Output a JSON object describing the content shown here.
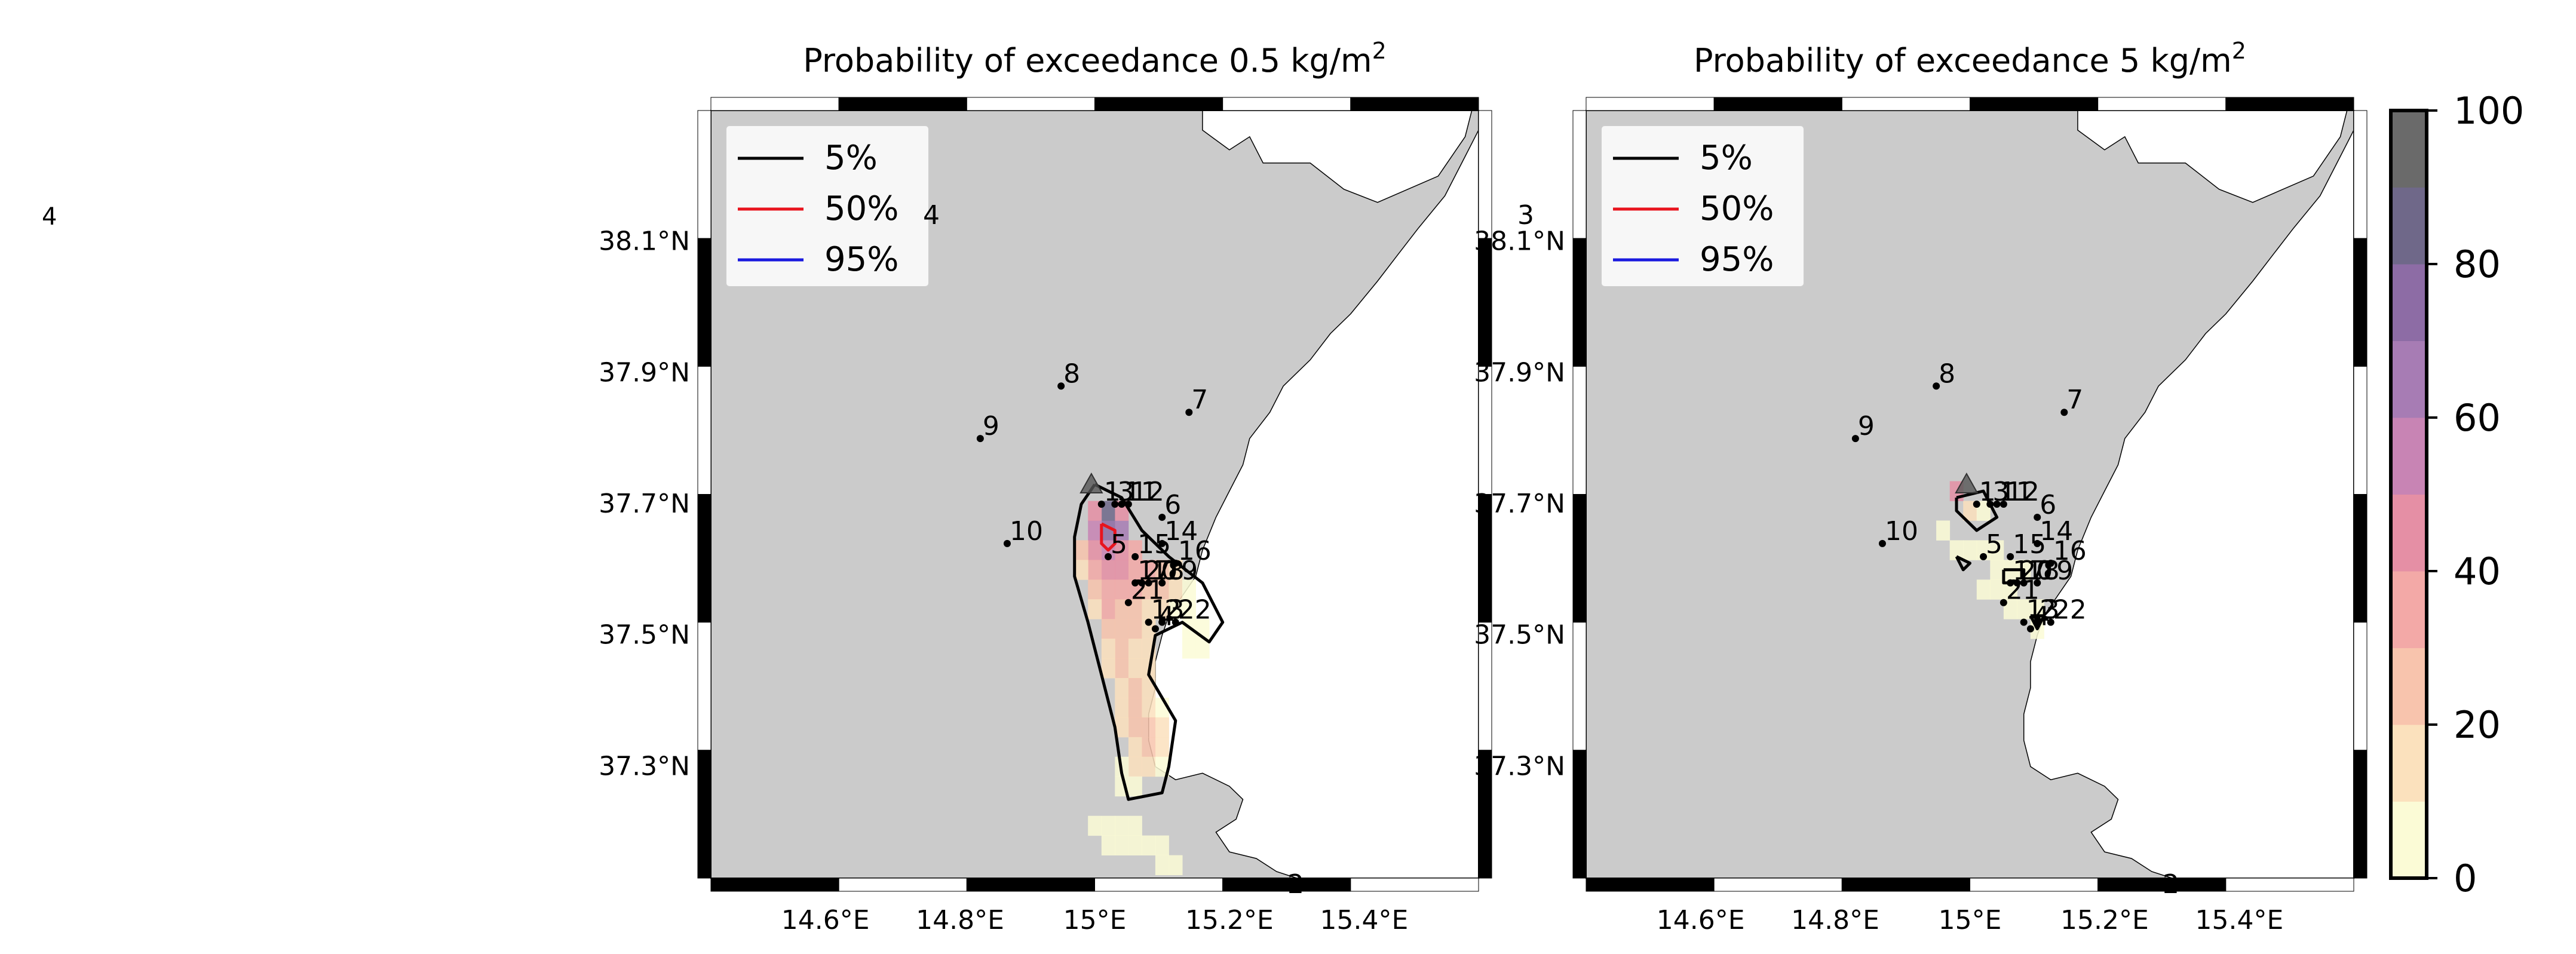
{
  "stray_labels": {
    "left": "4"
  },
  "colorbar": {
    "ticks": [
      0,
      20,
      40,
      60,
      80,
      100
    ],
    "levels": [
      0,
      10,
      20,
      30,
      40,
      50,
      60,
      70,
      80,
      90,
      100
    ],
    "colors": [
      "#fbfbd6",
      "#fbe1bd",
      "#f8c4ad",
      "#f3a9a7",
      "#e58fa5",
      "#c884b4",
      "#a77cb4",
      "#8d6ca5",
      "#6f6889",
      "#6a6a6a"
    ]
  },
  "chart_data": [
    {
      "type": "heatmap",
      "title_prefix": "Probability of exceedance 0.5 kg/m",
      "title_sup": "2",
      "threshold_kg_m2": 0.5,
      "xticks": [
        "14.6°E",
        "14.8°E",
        "15°E",
        "15.2°E",
        "15.4°E"
      ],
      "yticks": [
        "38.1°N",
        "37.9°N",
        "37.7°N",
        "37.5°N",
        "37.3°N"
      ],
      "xlim": [
        14.43,
        15.57
      ],
      "ylim": [
        37.13,
        38.3
      ],
      "legend": {
        "placement": "upper-left",
        "entries": [
          {
            "label": "5%",
            "color": "#000000"
          },
          {
            "label": "50%",
            "color": "#e8141e"
          },
          {
            "label": "95%",
            "color": "#1a1adf"
          }
        ]
      },
      "stray_labels": [
        "4",
        "2"
      ],
      "cells": [
        {
          "lon": 15.02,
          "lat": 37.69,
          "p": 85
        },
        {
          "lon": 15.02,
          "lat": 37.66,
          "p": 75
        },
        {
          "lon": 15.0,
          "lat": 37.66,
          "p": 55
        },
        {
          "lon": 15.04,
          "lat": 37.66,
          "p": 60
        },
        {
          "lon": 15.02,
          "lat": 37.63,
          "p": 55
        },
        {
          "lon": 15.0,
          "lat": 37.63,
          "p": 45
        },
        {
          "lon": 15.04,
          "lat": 37.63,
          "p": 45
        },
        {
          "lon": 14.98,
          "lat": 37.63,
          "p": 25
        },
        {
          "lon": 15.06,
          "lat": 37.63,
          "p": 35
        },
        {
          "lon": 15.0,
          "lat": 37.69,
          "p": 40
        },
        {
          "lon": 15.04,
          "lat": 37.69,
          "p": 45
        },
        {
          "lon": 15.02,
          "lat": 37.6,
          "p": 45
        },
        {
          "lon": 15.04,
          "lat": 37.6,
          "p": 40
        },
        {
          "lon": 15.06,
          "lat": 37.6,
          "p": 35
        },
        {
          "lon": 15.08,
          "lat": 37.6,
          "p": 35
        },
        {
          "lon": 15.1,
          "lat": 37.6,
          "p": 25
        },
        {
          "lon": 15.12,
          "lat": 37.6,
          "p": 15
        },
        {
          "lon": 15.0,
          "lat": 37.6,
          "p": 30
        },
        {
          "lon": 14.98,
          "lat": 37.6,
          "p": 15
        },
        {
          "lon": 15.02,
          "lat": 37.57,
          "p": 35
        },
        {
          "lon": 15.04,
          "lat": 37.57,
          "p": 35
        },
        {
          "lon": 15.06,
          "lat": 37.57,
          "p": 30
        },
        {
          "lon": 15.08,
          "lat": 37.57,
          "p": 25
        },
        {
          "lon": 15.1,
          "lat": 37.57,
          "p": 20
        },
        {
          "lon": 15.12,
          "lat": 37.57,
          "p": 15
        },
        {
          "lon": 15.14,
          "lat": 37.57,
          "p": 5
        },
        {
          "lon": 15.0,
          "lat": 37.57,
          "p": 20
        },
        {
          "lon": 15.02,
          "lat": 37.54,
          "p": 30
        },
        {
          "lon": 15.04,
          "lat": 37.54,
          "p": 25
        },
        {
          "lon": 15.06,
          "lat": 37.54,
          "p": 25
        },
        {
          "lon": 15.08,
          "lat": 37.54,
          "p": 15
        },
        {
          "lon": 15.1,
          "lat": 37.54,
          "p": 10
        },
        {
          "lon": 15.12,
          "lat": 37.54,
          "p": 5
        },
        {
          "lon": 15.14,
          "lat": 37.54,
          "p": 5
        },
        {
          "lon": 15.0,
          "lat": 37.54,
          "p": 15
        },
        {
          "lon": 15.02,
          "lat": 37.51,
          "p": 25
        },
        {
          "lon": 15.04,
          "lat": 37.51,
          "p": 20
        },
        {
          "lon": 15.06,
          "lat": 37.51,
          "p": 20
        },
        {
          "lon": 15.08,
          "lat": 37.51,
          "p": 10
        },
        {
          "lon": 15.14,
          "lat": 37.51,
          "p": 5
        },
        {
          "lon": 15.16,
          "lat": 37.51,
          "p": 5
        },
        {
          "lon": 15.14,
          "lat": 37.48,
          "p": 5
        },
        {
          "lon": 15.16,
          "lat": 37.48,
          "p": 5
        },
        {
          "lon": 15.04,
          "lat": 37.48,
          "p": 20
        },
        {
          "lon": 15.06,
          "lat": 37.48,
          "p": 15
        },
        {
          "lon": 15.02,
          "lat": 37.48,
          "p": 15
        },
        {
          "lon": 15.08,
          "lat": 37.48,
          "p": 10
        },
        {
          "lon": 15.04,
          "lat": 37.45,
          "p": 20
        },
        {
          "lon": 15.06,
          "lat": 37.45,
          "p": 15
        },
        {
          "lon": 15.02,
          "lat": 37.45,
          "p": 10
        },
        {
          "lon": 15.08,
          "lat": 37.45,
          "p": 10
        },
        {
          "lon": 15.04,
          "lat": 37.42,
          "p": 15
        },
        {
          "lon": 15.06,
          "lat": 37.42,
          "p": 20
        },
        {
          "lon": 15.08,
          "lat": 37.42,
          "p": 10
        },
        {
          "lon": 15.04,
          "lat": 37.39,
          "p": 15
        },
        {
          "lon": 15.06,
          "lat": 37.39,
          "p": 20
        },
        {
          "lon": 15.08,
          "lat": 37.39,
          "p": 15
        },
        {
          "lon": 15.1,
          "lat": 37.39,
          "p": 5
        },
        {
          "lon": 15.06,
          "lat": 37.36,
          "p": 20
        },
        {
          "lon": 15.08,
          "lat": 37.36,
          "p": 20
        },
        {
          "lon": 15.1,
          "lat": 37.36,
          "p": 10
        },
        {
          "lon": 15.04,
          "lat": 37.36,
          "p": 10
        },
        {
          "lon": 15.06,
          "lat": 37.33,
          "p": 15
        },
        {
          "lon": 15.08,
          "lat": 37.33,
          "p": 20
        },
        {
          "lon": 15.1,
          "lat": 37.33,
          "p": 15
        },
        {
          "lon": 15.06,
          "lat": 37.3,
          "p": 15
        },
        {
          "lon": 15.08,
          "lat": 37.3,
          "p": 15
        },
        {
          "lon": 15.1,
          "lat": 37.3,
          "p": 5
        },
        {
          "lon": 15.04,
          "lat": 37.3,
          "p": 5
        },
        {
          "lon": 15.04,
          "lat": 37.27,
          "p": 5
        },
        {
          "lon": 15.06,
          "lat": 37.27,
          "p": 5
        },
        {
          "lon": 15.0,
          "lat": 37.21,
          "p": 5
        },
        {
          "lon": 15.02,
          "lat": 37.21,
          "p": 5
        },
        {
          "lon": 15.04,
          "lat": 37.21,
          "p": 5
        },
        {
          "lon": 15.06,
          "lat": 37.21,
          "p": 5
        },
        {
          "lon": 15.02,
          "lat": 37.18,
          "p": 5
        },
        {
          "lon": 15.04,
          "lat": 37.18,
          "p": 5
        },
        {
          "lon": 15.06,
          "lat": 37.18,
          "p": 5
        },
        {
          "lon": 15.08,
          "lat": 37.18,
          "p": 5
        },
        {
          "lon": 15.1,
          "lat": 37.18,
          "p": 5
        },
        {
          "lon": 15.1,
          "lat": 37.15,
          "p": 5
        },
        {
          "lon": 15.12,
          "lat": 37.15,
          "p": 5
        }
      ],
      "contours": [
        {
          "level": "5%",
          "color": "#000000",
          "points": [
            [
              15.0,
              37.73
            ],
            [
              15.04,
              37.71
            ],
            [
              15.07,
              37.66
            ],
            [
              15.11,
              37.62
            ],
            [
              15.16,
              37.58
            ],
            [
              15.19,
              37.52
            ],
            [
              15.17,
              37.49
            ],
            [
              15.13,
              37.52
            ],
            [
              15.09,
              37.5
            ],
            [
              15.08,
              37.44
            ],
            [
              15.12,
              37.37
            ],
            [
              15.11,
              37.3
            ],
            [
              15.1,
              37.26
            ],
            [
              15.05,
              37.25
            ],
            [
              15.04,
              37.29
            ],
            [
              15.03,
              37.36
            ],
            [
              15.01,
              37.44
            ],
            [
              14.99,
              37.52
            ],
            [
              14.97,
              37.59
            ],
            [
              14.97,
              37.65
            ],
            [
              14.98,
              37.7
            ],
            [
              15.0,
              37.73
            ]
          ]
        },
        {
          "level": "50%",
          "color": "#e8141e",
          "points": [
            [
              15.01,
              37.67
            ],
            [
              15.03,
              37.66
            ],
            [
              15.03,
              37.64
            ],
            [
              15.02,
              37.63
            ],
            [
              15.01,
              37.64
            ],
            [
              15.01,
              37.67
            ]
          ]
        }
      ],
      "stations": [
        {
          "id": "1",
          "lon": 15.01,
          "lat": 37.7
        },
        {
          "id": "2",
          "lon": 15.1,
          "lat": 37.52
        },
        {
          "id": "3",
          "lon": 15.03,
          "lat": 37.7
        },
        {
          "id": "4",
          "lon": 15.09,
          "lat": 37.51
        },
        {
          "id": "5",
          "lon": 15.02,
          "lat": 37.62
        },
        {
          "id": "6",
          "lon": 15.1,
          "lat": 37.68
        },
        {
          "id": "7",
          "lon": 15.14,
          "lat": 37.84
        },
        {
          "id": "8",
          "lon": 14.95,
          "lat": 37.88
        },
        {
          "id": "9",
          "lon": 14.83,
          "lat": 37.8
        },
        {
          "id": "10",
          "lon": 14.87,
          "lat": 37.64
        },
        {
          "id": "11",
          "lon": 15.04,
          "lat": 37.7
        },
        {
          "id": "12",
          "lon": 15.05,
          "lat": 37.7
        },
        {
          "id": "13",
          "lon": 15.08,
          "lat": 37.52
        },
        {
          "id": "14",
          "lon": 15.1,
          "lat": 37.64
        },
        {
          "id": "15",
          "lon": 15.06,
          "lat": 37.62
        },
        {
          "id": "16",
          "lon": 15.12,
          "lat": 37.61
        },
        {
          "id": "17",
          "lon": 15.06,
          "lat": 37.58
        },
        {
          "id": "18",
          "lon": 15.08,
          "lat": 37.58
        },
        {
          "id": "19",
          "lon": 15.1,
          "lat": 37.58
        },
        {
          "id": "20",
          "lon": 15.07,
          "lat": 37.58
        },
        {
          "id": "21",
          "lon": 15.05,
          "lat": 37.55
        },
        {
          "id": "22",
          "lon": 15.12,
          "lat": 37.52
        }
      ],
      "vent": {
        "lon": 14.995,
        "lat": 37.73
      }
    },
    {
      "type": "heatmap",
      "title_prefix": "Probability of exceedance 5 kg/m",
      "title_sup": "2",
      "threshold_kg_m2": 5,
      "xticks": [
        "14.6°E",
        "14.8°E",
        "15°E",
        "15.2°E",
        "15.4°E"
      ],
      "yticks": [
        "38.1°N",
        "37.9°N",
        "37.7°N",
        "37.5°N",
        "37.3°N"
      ],
      "xlim": [
        14.43,
        15.57
      ],
      "ylim": [
        37.13,
        38.3
      ],
      "legend": {
        "placement": "upper-left",
        "entries": [
          {
            "label": "5%",
            "color": "#000000"
          },
          {
            "label": "50%",
            "color": "#e8141e"
          },
          {
            "label": "95%",
            "color": "#1a1adf"
          }
        ]
      },
      "stray_labels": [
        "3",
        "2"
      ],
      "cells": [
        {
          "lon": 14.98,
          "lat": 37.72,
          "p": 40
        },
        {
          "lon": 15.0,
          "lat": 37.69,
          "p": 10
        },
        {
          "lon": 15.02,
          "lat": 37.69,
          "p": 5
        },
        {
          "lon": 14.96,
          "lat": 37.66,
          "p": 5
        },
        {
          "lon": 14.98,
          "lat": 37.63,
          "p": 5
        },
        {
          "lon": 15.0,
          "lat": 37.63,
          "p": 5
        },
        {
          "lon": 15.02,
          "lat": 37.63,
          "p": 5
        },
        {
          "lon": 15.04,
          "lat": 37.63,
          "p": 5
        },
        {
          "lon": 15.06,
          "lat": 37.6,
          "p": 5
        },
        {
          "lon": 15.08,
          "lat": 37.6,
          "p": 5
        },
        {
          "lon": 15.04,
          "lat": 37.6,
          "p": 5
        },
        {
          "lon": 15.02,
          "lat": 37.57,
          "p": 5
        },
        {
          "lon": 15.04,
          "lat": 37.57,
          "p": 5
        },
        {
          "lon": 15.06,
          "lat": 37.57,
          "p": 5
        },
        {
          "lon": 15.08,
          "lat": 37.54,
          "p": 5
        },
        {
          "lon": 15.1,
          "lat": 37.54,
          "p": 5
        },
        {
          "lon": 15.06,
          "lat": 37.54,
          "p": 5
        },
        {
          "lon": 15.1,
          "lat": 37.51,
          "p": 5
        }
      ],
      "contours": [
        {
          "level": "5%",
          "color": "#000000",
          "points": [
            [
              14.98,
              37.71
            ],
            [
              15.02,
              37.72
            ],
            [
              15.04,
              37.68
            ],
            [
              15.01,
              37.66
            ],
            [
              14.98,
              37.69
            ],
            [
              14.98,
              37.71
            ]
          ]
        },
        {
          "level": "5%",
          "color": "#000000",
          "points": [
            [
              14.98,
              37.62
            ],
            [
              15.0,
              37.61
            ],
            [
              14.99,
              37.6
            ],
            [
              14.98,
              37.62
            ]
          ]
        },
        {
          "level": "5%",
          "color": "#000000",
          "points": [
            [
              15.05,
              37.6
            ],
            [
              15.08,
              37.6
            ],
            [
              15.08,
              37.58
            ],
            [
              15.05,
              37.58
            ],
            [
              15.05,
              37.6
            ]
          ]
        },
        {
          "level": "5%",
          "color": "#000000",
          "points": [
            [
              15.09,
              37.53
            ],
            [
              15.11,
              37.53
            ],
            [
              15.1,
              37.51
            ],
            [
              15.09,
              37.53
            ]
          ]
        }
      ],
      "stations": [
        {
          "id": "1",
          "lon": 15.01,
          "lat": 37.7
        },
        {
          "id": "2",
          "lon": 15.1,
          "lat": 37.52
        },
        {
          "id": "3",
          "lon": 15.03,
          "lat": 37.7
        },
        {
          "id": "4",
          "lon": 15.09,
          "lat": 37.51
        },
        {
          "id": "5",
          "lon": 15.02,
          "lat": 37.62
        },
        {
          "id": "6",
          "lon": 15.1,
          "lat": 37.68
        },
        {
          "id": "7",
          "lon": 15.14,
          "lat": 37.84
        },
        {
          "id": "8",
          "lon": 14.95,
          "lat": 37.88
        },
        {
          "id": "9",
          "lon": 14.83,
          "lat": 37.8
        },
        {
          "id": "10",
          "lon": 14.87,
          "lat": 37.64
        },
        {
          "id": "11",
          "lon": 15.04,
          "lat": 37.7
        },
        {
          "id": "12",
          "lon": 15.05,
          "lat": 37.7
        },
        {
          "id": "13",
          "lon": 15.08,
          "lat": 37.52
        },
        {
          "id": "14",
          "lon": 15.1,
          "lat": 37.64
        },
        {
          "id": "15",
          "lon": 15.06,
          "lat": 37.62
        },
        {
          "id": "16",
          "lon": 15.12,
          "lat": 37.61
        },
        {
          "id": "17",
          "lon": 15.06,
          "lat": 37.58
        },
        {
          "id": "18",
          "lon": 15.08,
          "lat": 37.58
        },
        {
          "id": "19",
          "lon": 15.1,
          "lat": 37.58
        },
        {
          "id": "20",
          "lon": 15.07,
          "lat": 37.58
        },
        {
          "id": "21",
          "lon": 15.05,
          "lat": 37.55
        },
        {
          "id": "22",
          "lon": 15.12,
          "lat": 37.52
        }
      ],
      "vent": {
        "lon": 14.995,
        "lat": 37.73
      }
    }
  ]
}
